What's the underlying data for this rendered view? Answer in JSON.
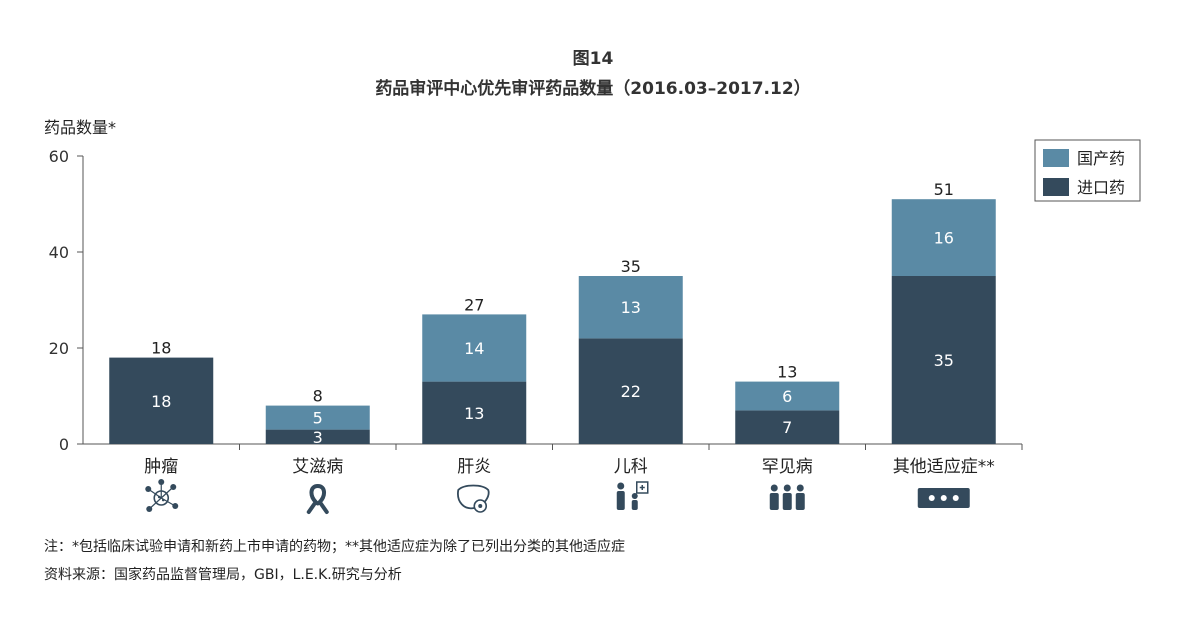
{
  "chart_data": {
    "type": "bar",
    "stacked": true,
    "title": "图14",
    "subtitle": "药品审评中心优先审评药品数量（2016.03–2017.12）",
    "ylabel": "药品数量*",
    "ylim": [
      0,
      60
    ],
    "yticks": [
      0,
      20,
      40,
      60
    ],
    "categories": [
      "肿瘤",
      "艾滋病",
      "肝炎",
      "儿科",
      "罕见病",
      "其他适应症**"
    ],
    "category_icons": [
      "molecule-icon",
      "ribbon-icon",
      "liver-icon",
      "family-icon",
      "people-icon",
      "ellipsis-icon"
    ],
    "series": [
      {
        "name": "进口药",
        "color": "#344a5c",
        "values": [
          18,
          3,
          13,
          22,
          7,
          35
        ]
      },
      {
        "name": "国产药",
        "color": "#5a8aa5",
        "values": [
          0,
          5,
          14,
          13,
          6,
          16
        ]
      }
    ],
    "totals": [
      18,
      8,
      27,
      35,
      13,
      51
    ],
    "legend_position": "top-right",
    "grid": false
  },
  "notes": {
    "footnote": "注：*包括临床试验申请和新药上市申请的药物；**其他适应症为除了已列出分类的其他适应症",
    "source": "资料来源：国家药品监督管理局，GBI，L.E.K.研究与分析"
  }
}
